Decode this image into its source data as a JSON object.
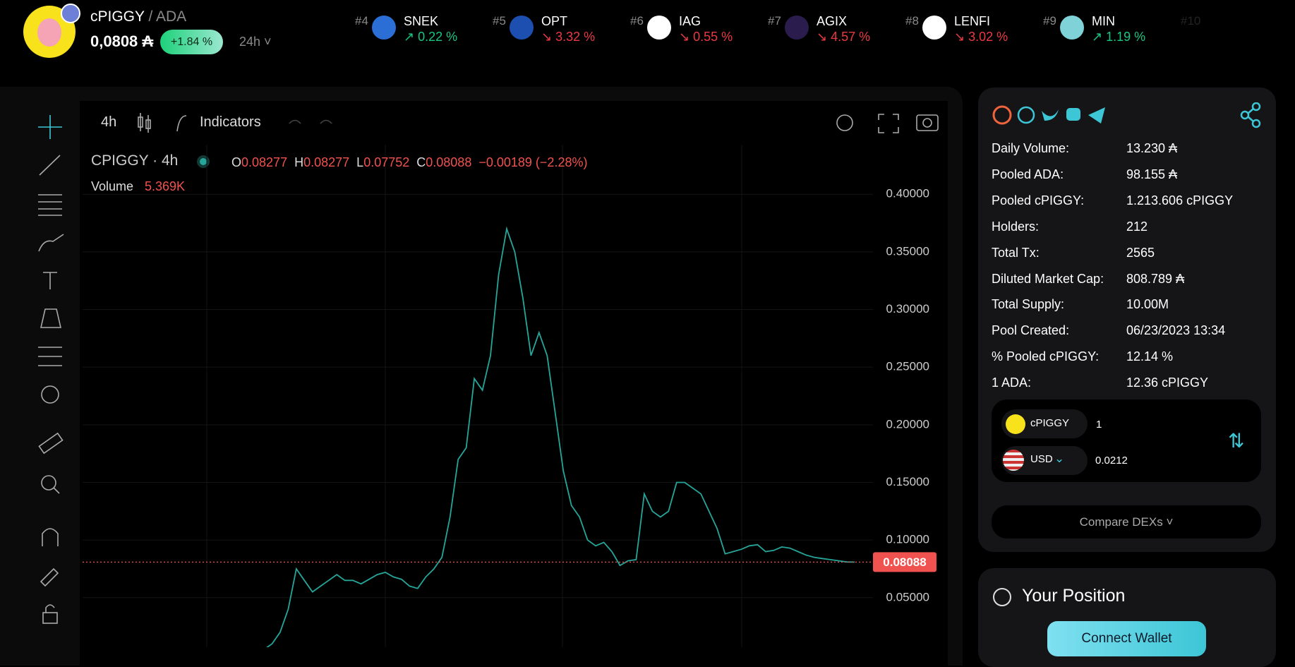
{
  "header": {
    "base": "cPIGGY",
    "quote": "/ ADA",
    "price": "0,0808 ₳",
    "change": "+1.84 %",
    "period": "24h"
  },
  "ticker": [
    {
      "rank": "#4",
      "symbol": "SNEK",
      "change": "↗ 0.22 %",
      "trend": "up",
      "color": "#2b6fd6"
    },
    {
      "rank": "#5",
      "symbol": "OPT",
      "change": "↘ 3.32 %",
      "trend": "down",
      "color": "#1c4fb0"
    },
    {
      "rank": "#6",
      "symbol": "IAG",
      "change": "↘ 0.55 %",
      "trend": "down",
      "color": "#ffffff"
    },
    {
      "rank": "#7",
      "symbol": "AGIX",
      "change": "↘ 4.57 %",
      "trend": "down",
      "color": "#2a1d4d"
    },
    {
      "rank": "#8",
      "symbol": "LENFI",
      "change": "↘ 3.02 %",
      "trend": "down",
      "color": "#ffffff"
    },
    {
      "rank": "#9",
      "symbol": "MIN",
      "change": "↗ 1.19 %",
      "trend": "up",
      "color": "#7fd3d8"
    },
    {
      "rank": "#10"
    }
  ],
  "toolbar": {
    "interval": "4h",
    "indicators": "Indicators"
  },
  "legend": {
    "symbol": "CPIGGY · 4h",
    "ohlc": [
      {
        "label": "O",
        "value": "0.08277"
      },
      {
        "label": "H",
        "value": "0.08277"
      },
      {
        "label": "L",
        "value": "0.07752"
      },
      {
        "label": "C",
        "value": "0.08088"
      }
    ],
    "change": "−0.00189 (−2.28%)",
    "volume_label": "Volume",
    "volume": "5.369K"
  },
  "chart_data": {
    "type": "line",
    "color": "#26a69a",
    "values": [
      0.005,
      0.01,
      0.02,
      0.04,
      0.075,
      0.065,
      0.055,
      0.06,
      0.065,
      0.07,
      0.065,
      0.065,
      0.062,
      0.066,
      0.07,
      0.072,
      0.068,
      0.066,
      0.06,
      0.058,
      0.068,
      0.075,
      0.085,
      0.12,
      0.17,
      0.18,
      0.24,
      0.23,
      0.26,
      0.33,
      0.37,
      0.35,
      0.31,
      0.26,
      0.28,
      0.26,
      0.21,
      0.16,
      0.13,
      0.12,
      0.1,
      0.095,
      0.098,
      0.09,
      0.078,
      0.082,
      0.083,
      0.14,
      0.125,
      0.12,
      0.125,
      0.15,
      0.15,
      0.145,
      0.14,
      0.125,
      0.11,
      0.088,
      0.09,
      0.092,
      0.095,
      0.096,
      0.09,
      0.091,
      0.094,
      0.093,
      0.09,
      0.087,
      0.085,
      0.084,
      0.083,
      0.082,
      0.081,
      0.08088
    ],
    "ylim": [
      0.007,
      0.443
    ],
    "yticks": [
      {
        "value": 0.05,
        "label": "0.05000"
      },
      {
        "value": 0.1,
        "label": "0.10000"
      },
      {
        "value": 0.15,
        "label": "0.15000"
      },
      {
        "value": 0.2,
        "label": "0.20000"
      },
      {
        "value": 0.25,
        "label": "0.25000"
      },
      {
        "value": 0.3,
        "label": "0.30000"
      },
      {
        "value": 0.35,
        "label": "0.35000"
      },
      {
        "value": 0.4,
        "label": "0.40000"
      }
    ],
    "grid": true,
    "last_price": 0.08088,
    "last_price_color": "#f0524f"
  },
  "info": {
    "rows": [
      [
        "Daily Volume:",
        "13.230 ₳"
      ],
      [
        "Pooled ADA:",
        "98.155 ₳"
      ],
      [
        "Pooled cPIGGY:",
        "1.213.606 cPIGGY"
      ],
      [
        "Holders:",
        "212"
      ],
      [
        "Total Tx:",
        "2565"
      ],
      [
        "Diluted Market Cap:",
        "808.789 ₳"
      ],
      [
        "Total Supply:",
        "10.00M"
      ],
      [
        "Pool Created:",
        "06/23/2023 13:34"
      ],
      [
        "% Pooled cPIGGY:",
        "12.14 %"
      ],
      [
        "1 ADA:",
        "12.36 cPIGGY"
      ]
    ]
  },
  "swap": {
    "from_token": "cPIGGY",
    "from_amount": "1",
    "to_token": "USD",
    "to_amount": "0.0212",
    "compare": "Compare DEXs"
  },
  "position": {
    "title": "Your Position",
    "button": "Connect Wallet"
  }
}
